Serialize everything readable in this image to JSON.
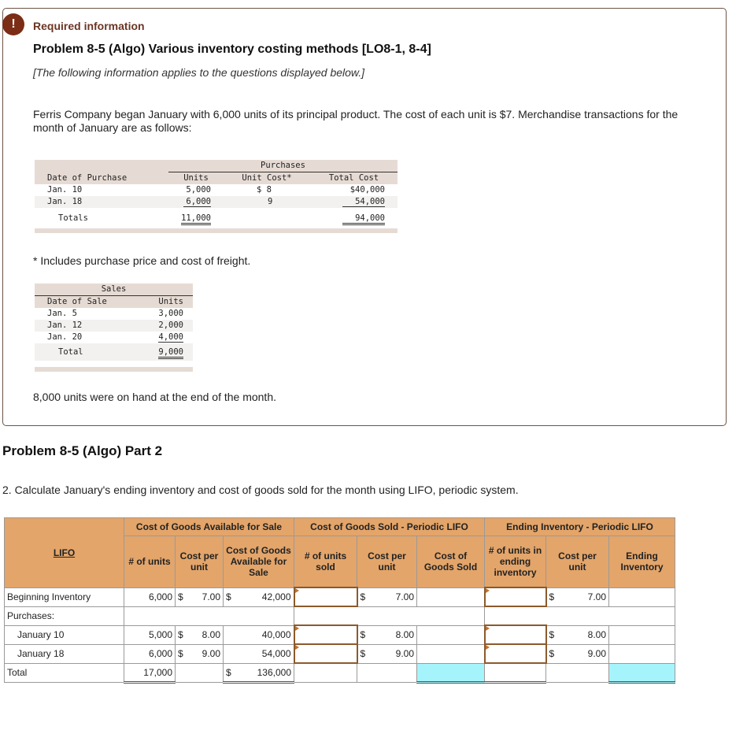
{
  "header": {
    "badge": "!",
    "required": "Required information",
    "title": "Problem 8-5 (Algo) Various inventory costing methods [LO8-1, 8-4]",
    "note": "[The following information applies to the questions displayed below.]"
  },
  "intro": "Ferris Company began January with 6,000 units of its principal product. The cost of each unit is $7. Merchandise transactions for the month of January are as follows:",
  "purchases": {
    "group": "Purchases",
    "headers": [
      "Date of Purchase",
      "Units",
      "Unit Cost*",
      "Total Cost"
    ],
    "rows": [
      [
        "Jan. 10",
        "5,000",
        "$ 8",
        "$40,000"
      ],
      [
        "Jan. 18",
        "6,000",
        "9",
        "54,000"
      ]
    ],
    "totals": [
      "Totals",
      "11,000",
      "",
      "94,000"
    ]
  },
  "footnote": "* Includes purchase price and cost of freight.",
  "sales": {
    "group": "Sales",
    "headers": [
      "Date of Sale",
      "Units"
    ],
    "rows": [
      [
        "Jan. 5",
        "3,000"
      ],
      [
        "Jan. 12",
        "2,000"
      ],
      [
        "Jan. 20",
        "4,000"
      ]
    ],
    "totals": [
      "Total",
      "9,000"
    ]
  },
  "onhand": "8,000 units were on hand at the end of the month.",
  "part": "Problem 8-5 (Algo) Part 2",
  "question": "2. Calculate January's ending inventory and cost of goods sold for the month using LIFO, periodic system.",
  "worksheet": {
    "groups": [
      "Cost of Goods Available for Sale",
      "Cost of Goods Sold - Periodic LIFO",
      "Ending Inventory - Periodic LIFO"
    ],
    "method": "LIFO",
    "cols": [
      "# of units",
      "Cost per unit",
      "Cost of Goods Available for Sale",
      "# of units sold",
      "Cost per unit",
      "Cost of Goods Sold",
      "# of units in ending inventory",
      "Cost per unit",
      "Ending Inventory"
    ],
    "currency": "$",
    "rows": [
      {
        "label": "Beginning Inventory",
        "units": "6,000",
        "cost": "7.00",
        "total": "42,000",
        "cogs_cost": "7.00",
        "ei_cost": "7.00"
      },
      {
        "label": "Purchases:"
      },
      {
        "label": "January 10",
        "units": "5,000",
        "cost": "8.00",
        "total": "40,000",
        "cogs_cost": "8.00",
        "ei_cost": "8.00"
      },
      {
        "label": "January 18",
        "units": "6,000",
        "cost": "9.00",
        "total": "54,000",
        "cogs_cost": "9.00",
        "ei_cost": "9.00"
      }
    ],
    "total": {
      "label": "Total",
      "units": "17,000",
      "total": "136,000"
    },
    "colors": {
      "header": "#e3a56a",
      "answer_total": "#a6f4fb"
    }
  }
}
